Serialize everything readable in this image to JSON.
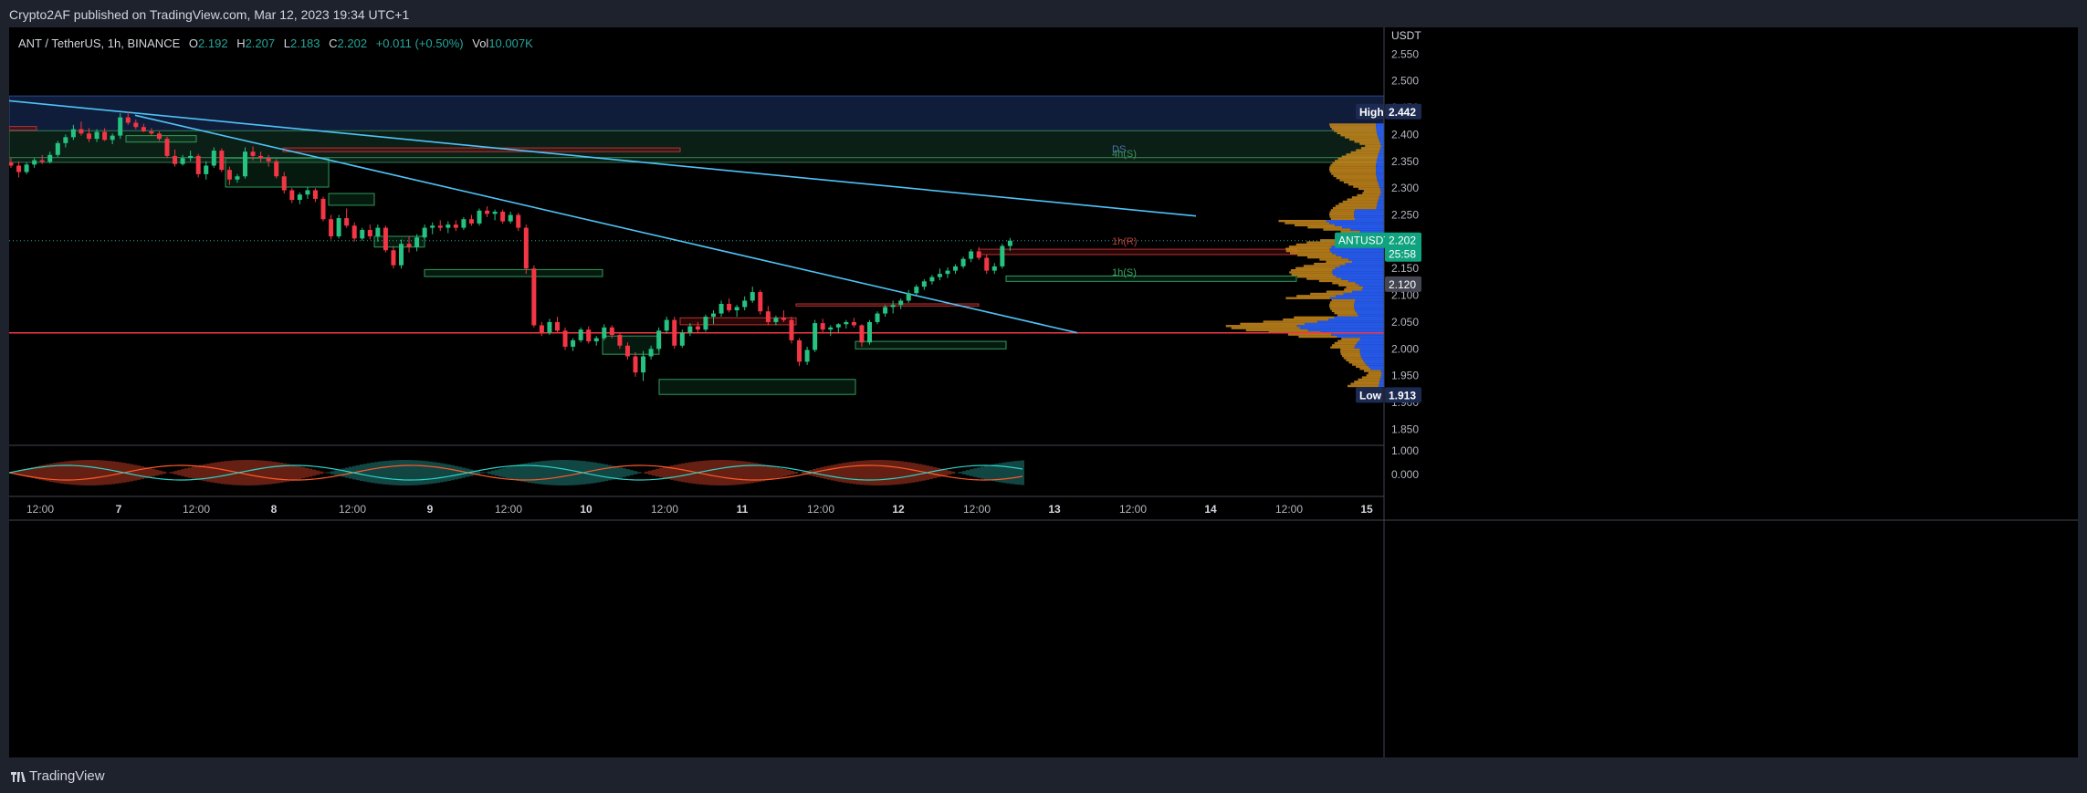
{
  "header": {
    "published": "Crypto2AF published on TradingView.com, Mar 12, 2023 19:34 UTC+1"
  },
  "legend": {
    "symbol": "ANT / TetherUS, 1h, BINANCE",
    "o_label": "O",
    "o": "2.192",
    "h_label": "H",
    "h": "2.207",
    "l_label": "L",
    "l": "2.183",
    "c_label": "C",
    "c": "2.202",
    "change": "+0.011 (+0.50%)",
    "vol_label": "Vol",
    "vol": "10.007K"
  },
  "footer": {
    "brand": "TradingView"
  },
  "colors": {
    "up": "#26c281",
    "down": "#f23645",
    "trendline": "#4fc3f7",
    "supply_zone": "#1e3a6e",
    "demand_zone": "#1d3a2a",
    "support_line": "#f23645",
    "profile_orange": "#c98a1c",
    "profile_blue": "#2962ff"
  },
  "chart_data": {
    "type": "candlestick",
    "currency_label": "USDT",
    "ylim": [
      1.82,
      2.6
    ],
    "y_ticks": [
      "2.550",
      "2.500",
      "2.450",
      "2.400",
      "2.350",
      "2.300",
      "2.250",
      "2.200",
      "2.150",
      "2.100",
      "2.050",
      "2.000",
      "1.950",
      "1.900",
      "1.850"
    ],
    "x_ticks": [
      "12:00",
      "7",
      "12:00",
      "8",
      "12:00",
      "9",
      "12:00",
      "10",
      "12:00",
      "11",
      "12:00",
      "12",
      "12:00",
      "13",
      "12:00",
      "14",
      "12:00",
      "15"
    ],
    "markers": {
      "high": {
        "label": "High",
        "value": "2.442"
      },
      "low": {
        "label": "Low",
        "value": "1.913"
      },
      "last": {
        "label": "ANTUSDT",
        "value": "2.202",
        "countdown": "25:58"
      },
      "poc": {
        "value": "2.120"
      }
    },
    "zone_labels": {
      "ds": "DS",
      "h4s": "4h(S)",
      "h1r": "1h(R)",
      "h1s": "1h(S)"
    },
    "support_level": 2.03,
    "trendlines": [
      {
        "from": [
          0,
          2.463
        ],
        "to": [
          1300,
          2.248
        ]
      },
      {
        "from": [
          138,
          2.436
        ],
        "to": [
          1170,
          2.03
        ]
      }
    ],
    "candles": [
      [
        2.348,
        2.356,
        2.338,
        2.342
      ],
      [
        2.342,
        2.35,
        2.32,
        2.33
      ],
      [
        2.33,
        2.348,
        2.326,
        2.344
      ],
      [
        2.344,
        2.356,
        2.338,
        2.352
      ],
      [
        2.352,
        2.362,
        2.345,
        2.349
      ],
      [
        2.349,
        2.368,
        2.346,
        2.362
      ],
      [
        2.362,
        2.388,
        2.358,
        2.384
      ],
      [
        2.384,
        2.4,
        2.376,
        2.395
      ],
      [
        2.395,
        2.418,
        2.39,
        2.41
      ],
      [
        2.41,
        2.424,
        2.398,
        2.402
      ],
      [
        2.402,
        2.412,
        2.386,
        2.392
      ],
      [
        2.392,
        2.41,
        2.386,
        2.405
      ],
      [
        2.405,
        2.412,
        2.388,
        2.39
      ],
      [
        2.39,
        2.402,
        2.382,
        2.398
      ],
      [
        2.398,
        2.44,
        2.392,
        2.432
      ],
      [
        2.432,
        2.442,
        2.418,
        2.422
      ],
      [
        2.422,
        2.428,
        2.41,
        2.414
      ],
      [
        2.414,
        2.42,
        2.404,
        2.406
      ],
      [
        2.406,
        2.412,
        2.398,
        2.402
      ],
      [
        2.402,
        2.406,
        2.388,
        2.392
      ],
      [
        2.392,
        2.396,
        2.356,
        2.36
      ],
      [
        2.36,
        2.372,
        2.34,
        2.345
      ],
      [
        2.345,
        2.362,
        2.342,
        2.356
      ],
      [
        2.356,
        2.37,
        2.35,
        2.36
      ],
      [
        2.36,
        2.364,
        2.32,
        2.326
      ],
      [
        2.326,
        2.35,
        2.316,
        2.342
      ],
      [
        2.342,
        2.376,
        2.338,
        2.37
      ],
      [
        2.37,
        2.374,
        2.33,
        2.334
      ],
      [
        2.334,
        2.34,
        2.306,
        2.316
      ],
      [
        2.316,
        2.326,
        2.31,
        2.322
      ],
      [
        2.322,
        2.376,
        2.318,
        2.368
      ],
      [
        2.368,
        2.378,
        2.352,
        2.36
      ],
      [
        2.36,
        2.368,
        2.348,
        2.356
      ],
      [
        2.356,
        2.362,
        2.34,
        2.35
      ],
      [
        2.35,
        2.354,
        2.318,
        2.322
      ],
      [
        2.322,
        2.33,
        2.29,
        2.296
      ],
      [
        2.296,
        2.3,
        2.272,
        2.278
      ],
      [
        2.278,
        2.292,
        2.27,
        2.288
      ],
      [
        2.288,
        2.302,
        2.28,
        2.296
      ],
      [
        2.296,
        2.3,
        2.274,
        2.28
      ],
      [
        2.28,
        2.284,
        2.238,
        2.242
      ],
      [
        2.242,
        2.25,
        2.204,
        2.21
      ],
      [
        2.21,
        2.25,
        2.206,
        2.244
      ],
      [
        2.244,
        2.262,
        2.226,
        2.23
      ],
      [
        2.23,
        2.236,
        2.2,
        2.206
      ],
      [
        2.206,
        2.226,
        2.202,
        2.222
      ],
      [
        2.222,
        2.232,
        2.204,
        2.21
      ],
      [
        2.21,
        2.232,
        2.2,
        2.226
      ],
      [
        2.226,
        2.23,
        2.18,
        2.184
      ],
      [
        2.184,
        2.192,
        2.15,
        2.156
      ],
      [
        2.156,
        2.204,
        2.15,
        2.196
      ],
      [
        2.196,
        2.21,
        2.18,
        2.19
      ],
      [
        2.19,
        2.214,
        2.182,
        2.208
      ],
      [
        2.208,
        2.232,
        2.204,
        2.226
      ],
      [
        2.226,
        2.236,
        2.214,
        2.23
      ],
      [
        2.23,
        2.24,
        2.22,
        2.226
      ],
      [
        2.226,
        2.238,
        2.216,
        2.232
      ],
      [
        2.232,
        2.24,
        2.22,
        2.226
      ],
      [
        2.226,
        2.246,
        2.222,
        2.242
      ],
      [
        2.242,
        2.25,
        2.23,
        2.234
      ],
      [
        2.234,
        2.262,
        2.23,
        2.258
      ],
      [
        2.258,
        2.266,
        2.246,
        2.252
      ],
      [
        2.252,
        2.26,
        2.24,
        2.256
      ],
      [
        2.256,
        2.26,
        2.234,
        2.238
      ],
      [
        2.238,
        2.256,
        2.234,
        2.25
      ],
      [
        2.25,
        2.254,
        2.22,
        2.226
      ],
      [
        2.226,
        2.232,
        2.14,
        2.15
      ],
      [
        2.15,
        2.156,
        2.04,
        2.044
      ],
      [
        2.044,
        2.05,
        2.024,
        2.03
      ],
      [
        2.03,
        2.056,
        2.026,
        2.05
      ],
      [
        2.05,
        2.06,
        2.03,
        2.034
      ],
      [
        2.034,
        2.04,
        1.998,
        2.004
      ],
      [
        2.004,
        2.02,
        1.996,
        2.016
      ],
      [
        2.016,
        2.04,
        2.012,
        2.036
      ],
      [
        2.036,
        2.042,
        2.01,
        2.014
      ],
      [
        2.014,
        2.024,
        2.006,
        2.02
      ],
      [
        2.02,
        2.046,
        2.016,
        2.04
      ],
      [
        2.04,
        2.044,
        2.02,
        2.026
      ],
      [
        2.026,
        2.03,
        2.0,
        2.006
      ],
      [
        2.006,
        2.012,
        1.98,
        1.986
      ],
      [
        1.986,
        1.994,
        1.948,
        1.956
      ],
      [
        1.956,
        1.996,
        1.94,
        1.986
      ],
      [
        1.986,
        2.006,
        1.98,
        2.0
      ],
      [
        2.0,
        2.04,
        1.996,
        2.034
      ],
      [
        2.034,
        2.06,
        2.028,
        2.054
      ],
      [
        2.054,
        2.06,
        2.0,
        2.006
      ],
      [
        2.006,
        2.036,
        2.002,
        2.03
      ],
      [
        2.03,
        2.048,
        2.024,
        2.042
      ],
      [
        2.042,
        2.05,
        2.03,
        2.036
      ],
      [
        2.036,
        2.064,
        2.032,
        2.06
      ],
      [
        2.06,
        2.072,
        2.046,
        2.066
      ],
      [
        2.066,
        2.09,
        2.06,
        2.084
      ],
      [
        2.084,
        2.094,
        2.068,
        2.072
      ],
      [
        2.072,
        2.082,
        2.06,
        2.078
      ],
      [
        2.078,
        2.098,
        2.072,
        2.09
      ],
      [
        2.09,
        2.116,
        2.086,
        2.106
      ],
      [
        2.106,
        2.11,
        2.064,
        2.07
      ],
      [
        2.07,
        2.08,
        2.044,
        2.05
      ],
      [
        2.05,
        2.062,
        2.044,
        2.058
      ],
      [
        2.058,
        2.072,
        2.05,
        2.054
      ],
      [
        2.054,
        2.06,
        2.01,
        2.016
      ],
      [
        2.016,
        2.02,
        1.968,
        1.976
      ],
      [
        1.976,
        2.004,
        1.97,
        1.998
      ],
      [
        1.998,
        2.054,
        1.994,
        2.048
      ],
      [
        2.048,
        2.056,
        2.03,
        2.036
      ],
      [
        2.036,
        2.044,
        2.024,
        2.04
      ],
      [
        2.04,
        2.048,
        2.03,
        2.046
      ],
      [
        2.046,
        2.054,
        2.038,
        2.05
      ],
      [
        2.05,
        2.058,
        2.04,
        2.044
      ],
      [
        2.044,
        2.046,
        2.004,
        2.012
      ],
      [
        2.012,
        2.054,
        2.008,
        2.05
      ],
      [
        2.05,
        2.07,
        2.046,
        2.066
      ],
      [
        2.066,
        2.082,
        2.06,
        2.078
      ],
      [
        2.078,
        2.09,
        2.066,
        2.082
      ],
      [
        2.082,
        2.094,
        2.074,
        2.09
      ],
      [
        2.09,
        2.11,
        2.086,
        2.104
      ],
      [
        2.104,
        2.12,
        2.1,
        2.116
      ],
      [
        2.116,
        2.13,
        2.11,
        2.126
      ],
      [
        2.126,
        2.138,
        2.12,
        2.134
      ],
      [
        2.134,
        2.15,
        2.128,
        2.14
      ],
      [
        2.14,
        2.152,
        2.132,
        2.146
      ],
      [
        2.146,
        2.158,
        2.14,
        2.154
      ],
      [
        2.154,
        2.172,
        2.15,
        2.168
      ],
      [
        2.168,
        2.186,
        2.162,
        2.182
      ],
      [
        2.182,
        2.19,
        2.166,
        2.17
      ],
      [
        2.17,
        2.176,
        2.14,
        2.146
      ],
      [
        2.146,
        2.16,
        2.14,
        2.154
      ],
      [
        2.154,
        2.196,
        2.15,
        2.192
      ],
      [
        2.192,
        2.207,
        2.183,
        2.202
      ]
    ],
    "boxes": [
      {
        "x0": 0,
        "x1": 1510,
        "y0": 2.472,
        "y1": 2.407,
        "kind": "supply"
      },
      {
        "x0": 0,
        "x1": 1510,
        "y0": 2.407,
        "y1": 2.357,
        "kind": "zone"
      },
      {
        "x0": 0,
        "x1": 1510,
        "y0": 2.357,
        "y1": 2.348,
        "kind": "zone"
      },
      {
        "x0": 0,
        "x1": 30,
        "y0": 2.415,
        "y1": 2.408,
        "kind": "red"
      },
      {
        "x0": 300,
        "x1": 735,
        "y0": 2.375,
        "y1": 2.368,
        "kind": "red"
      },
      {
        "x0": 128,
        "x1": 205,
        "y0": 2.398,
        "y1": 2.386,
        "kind": "green"
      },
      {
        "x0": 237,
        "x1": 350,
        "y0": 2.356,
        "y1": 2.302,
        "kind": "green"
      },
      {
        "x0": 350,
        "x1": 400,
        "y0": 2.29,
        "y1": 2.268,
        "kind": "green"
      },
      {
        "x0": 400,
        "x1": 455,
        "y0": 2.21,
        "y1": 2.19,
        "kind": "green"
      },
      {
        "x0": 455,
        "x1": 650,
        "y0": 2.148,
        "y1": 2.135,
        "kind": "green"
      },
      {
        "x0": 650,
        "x1": 712,
        "y0": 2.024,
        "y1": 1.99,
        "kind": "green"
      },
      {
        "x0": 712,
        "x1": 927,
        "y0": 1.943,
        "y1": 1.915,
        "kind": "green"
      },
      {
        "x0": 735,
        "x1": 862,
        "y0": 2.058,
        "y1": 2.045,
        "kind": "red"
      },
      {
        "x0": 862,
        "x1": 1062,
        "y0": 2.084,
        "y1": 2.08,
        "kind": "red"
      },
      {
        "x0": 927,
        "x1": 1092,
        "y0": 2.014,
        "y1": 2.0,
        "kind": "green"
      },
      {
        "x0": 1062,
        "x1": 1410,
        "y0": 2.186,
        "y1": 2.176,
        "kind": "red"
      },
      {
        "x0": 1092,
        "x1": 1410,
        "y0": 2.136,
        "y1": 2.126,
        "kind": "green"
      }
    ]
  },
  "oscillator": {
    "y_ticks": [
      "1.000",
      "0.000"
    ]
  }
}
